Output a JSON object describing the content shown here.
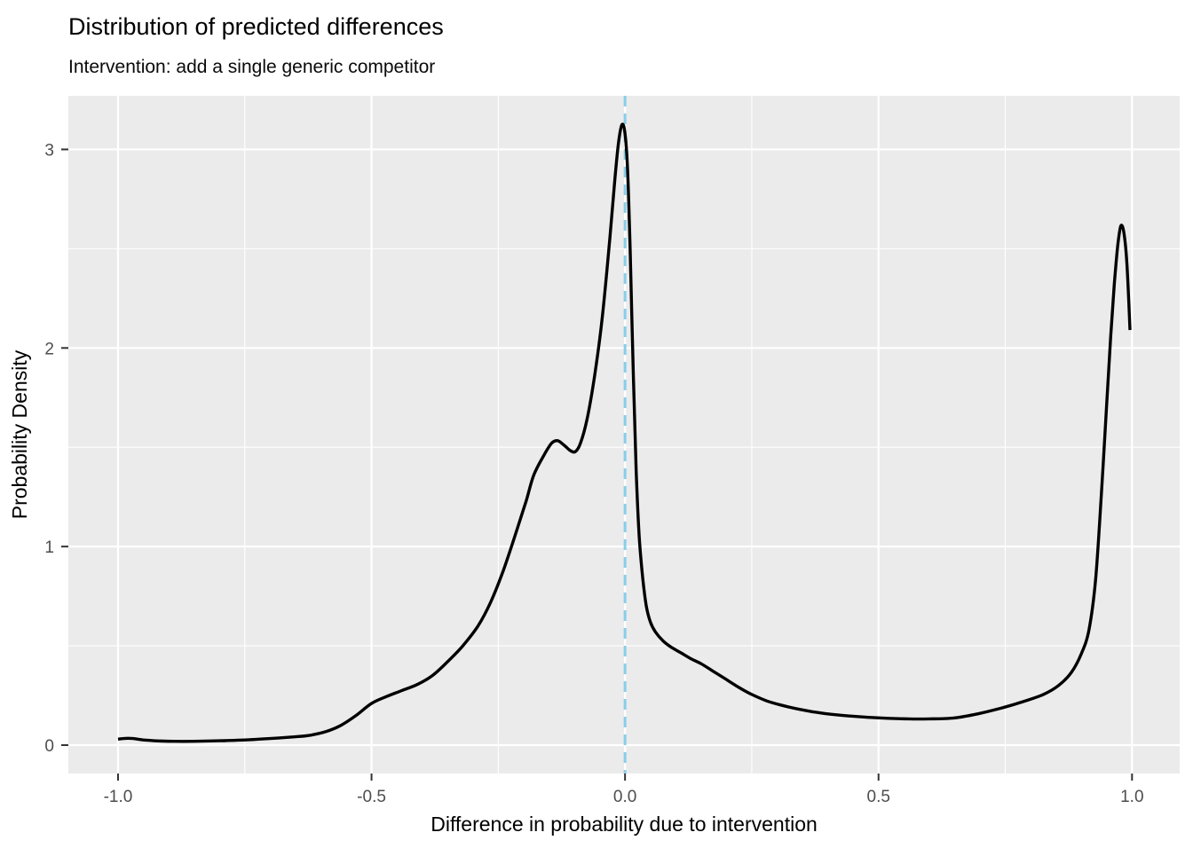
{
  "title": "Distribution of predicted differences",
  "subtitle": "Intervention: add a single generic competitor",
  "colors": {
    "panel_background": "#EBEBEB",
    "grid": "#FFFFFF",
    "curve": "#000000",
    "vline": "#87CEEB",
    "tick_mark": "#333333",
    "tick_text": "#4D4D4D",
    "title_text": "#000000"
  },
  "chart_data": {
    "type": "line",
    "title": "Distribution of predicted differences",
    "subtitle": "Intervention: add a single generic competitor",
    "xlabel": "Difference in probability due to intervention",
    "ylabel": "Probability Density",
    "xlim": [
      -1.098,
      1.094
    ],
    "ylim": [
      -0.143,
      3.27
    ],
    "x_ticks": [
      -1.0,
      -0.5,
      0.0,
      0.5,
      1.0
    ],
    "x_tick_labels": [
      "-1.0",
      "-0.5",
      "0.0",
      "0.5",
      "1.0"
    ],
    "y_ticks": [
      0,
      1,
      2,
      3
    ],
    "y_tick_labels": [
      "0",
      "1",
      "2",
      "3"
    ],
    "x_minor_breaks": [
      -0.75,
      -0.25,
      0.25,
      0.75
    ],
    "y_minor_breaks": [
      0.5,
      1.5,
      2.5
    ],
    "grid": true,
    "legend": "none",
    "vline": {
      "x": 0,
      "style": "dashed",
      "color": "#87CEEB"
    },
    "series": [
      {
        "name": "density-of-predicted-differences",
        "color": "#000000",
        "points": [
          [
            -1.0,
            0.03
          ],
          [
            -0.985,
            0.034
          ],
          [
            -0.97,
            0.033
          ],
          [
            -0.95,
            0.026
          ],
          [
            -0.92,
            0.021
          ],
          [
            -0.89,
            0.019
          ],
          [
            -0.85,
            0.019
          ],
          [
            -0.8,
            0.022
          ],
          [
            -0.75,
            0.026
          ],
          [
            -0.7,
            0.033
          ],
          [
            -0.65,
            0.042
          ],
          [
            -0.62,
            0.05
          ],
          [
            -0.59,
            0.068
          ],
          [
            -0.56,
            0.1
          ],
          [
            -0.53,
            0.15
          ],
          [
            -0.5,
            0.21
          ],
          [
            -0.47,
            0.245
          ],
          [
            -0.44,
            0.275
          ],
          [
            -0.41,
            0.305
          ],
          [
            -0.38,
            0.35
          ],
          [
            -0.35,
            0.42
          ],
          [
            -0.32,
            0.5
          ],
          [
            -0.29,
            0.6
          ],
          [
            -0.265,
            0.72
          ],
          [
            -0.24,
            0.88
          ],
          [
            -0.215,
            1.07
          ],
          [
            -0.195,
            1.23
          ],
          [
            -0.18,
            1.36
          ],
          [
            -0.16,
            1.46
          ],
          [
            -0.145,
            1.52
          ],
          [
            -0.133,
            1.533
          ],
          [
            -0.12,
            1.51
          ],
          [
            -0.108,
            1.483
          ],
          [
            -0.098,
            1.478
          ],
          [
            -0.088,
            1.52
          ],
          [
            -0.075,
            1.64
          ],
          [
            -0.06,
            1.86
          ],
          [
            -0.045,
            2.15
          ],
          [
            -0.03,
            2.55
          ],
          [
            -0.02,
            2.85
          ],
          [
            -0.013,
            3.03
          ],
          [
            -0.006,
            3.125
          ],
          [
            0.0,
            3.08
          ],
          [
            0.005,
            2.9
          ],
          [
            0.01,
            2.5
          ],
          [
            0.016,
            1.9
          ],
          [
            0.022,
            1.38
          ],
          [
            0.028,
            1.05
          ],
          [
            0.035,
            0.84
          ],
          [
            0.042,
            0.7
          ],
          [
            0.05,
            0.62
          ],
          [
            0.06,
            0.57
          ],
          [
            0.075,
            0.525
          ],
          [
            0.09,
            0.495
          ],
          [
            0.11,
            0.465
          ],
          [
            0.13,
            0.435
          ],
          [
            0.15,
            0.41
          ],
          [
            0.175,
            0.37
          ],
          [
            0.2,
            0.33
          ],
          [
            0.225,
            0.29
          ],
          [
            0.25,
            0.255
          ],
          [
            0.28,
            0.222
          ],
          [
            0.31,
            0.2
          ],
          [
            0.34,
            0.182
          ],
          [
            0.37,
            0.168
          ],
          [
            0.4,
            0.157
          ],
          [
            0.44,
            0.147
          ],
          [
            0.48,
            0.14
          ],
          [
            0.52,
            0.135
          ],
          [
            0.56,
            0.132
          ],
          [
            0.6,
            0.132
          ],
          [
            0.65,
            0.137
          ],
          [
            0.7,
            0.16
          ],
          [
            0.74,
            0.185
          ],
          [
            0.78,
            0.215
          ],
          [
            0.825,
            0.255
          ],
          [
            0.855,
            0.3
          ],
          [
            0.88,
            0.365
          ],
          [
            0.9,
            0.46
          ],
          [
            0.915,
            0.58
          ],
          [
            0.928,
            0.83
          ],
          [
            0.94,
            1.28
          ],
          [
            0.95,
            1.72
          ],
          [
            0.958,
            2.06
          ],
          [
            0.965,
            2.32
          ],
          [
            0.972,
            2.52
          ],
          [
            0.978,
            2.615
          ],
          [
            0.984,
            2.58
          ],
          [
            0.99,
            2.42
          ],
          [
            0.996,
            2.09
          ]
        ]
      }
    ]
  }
}
